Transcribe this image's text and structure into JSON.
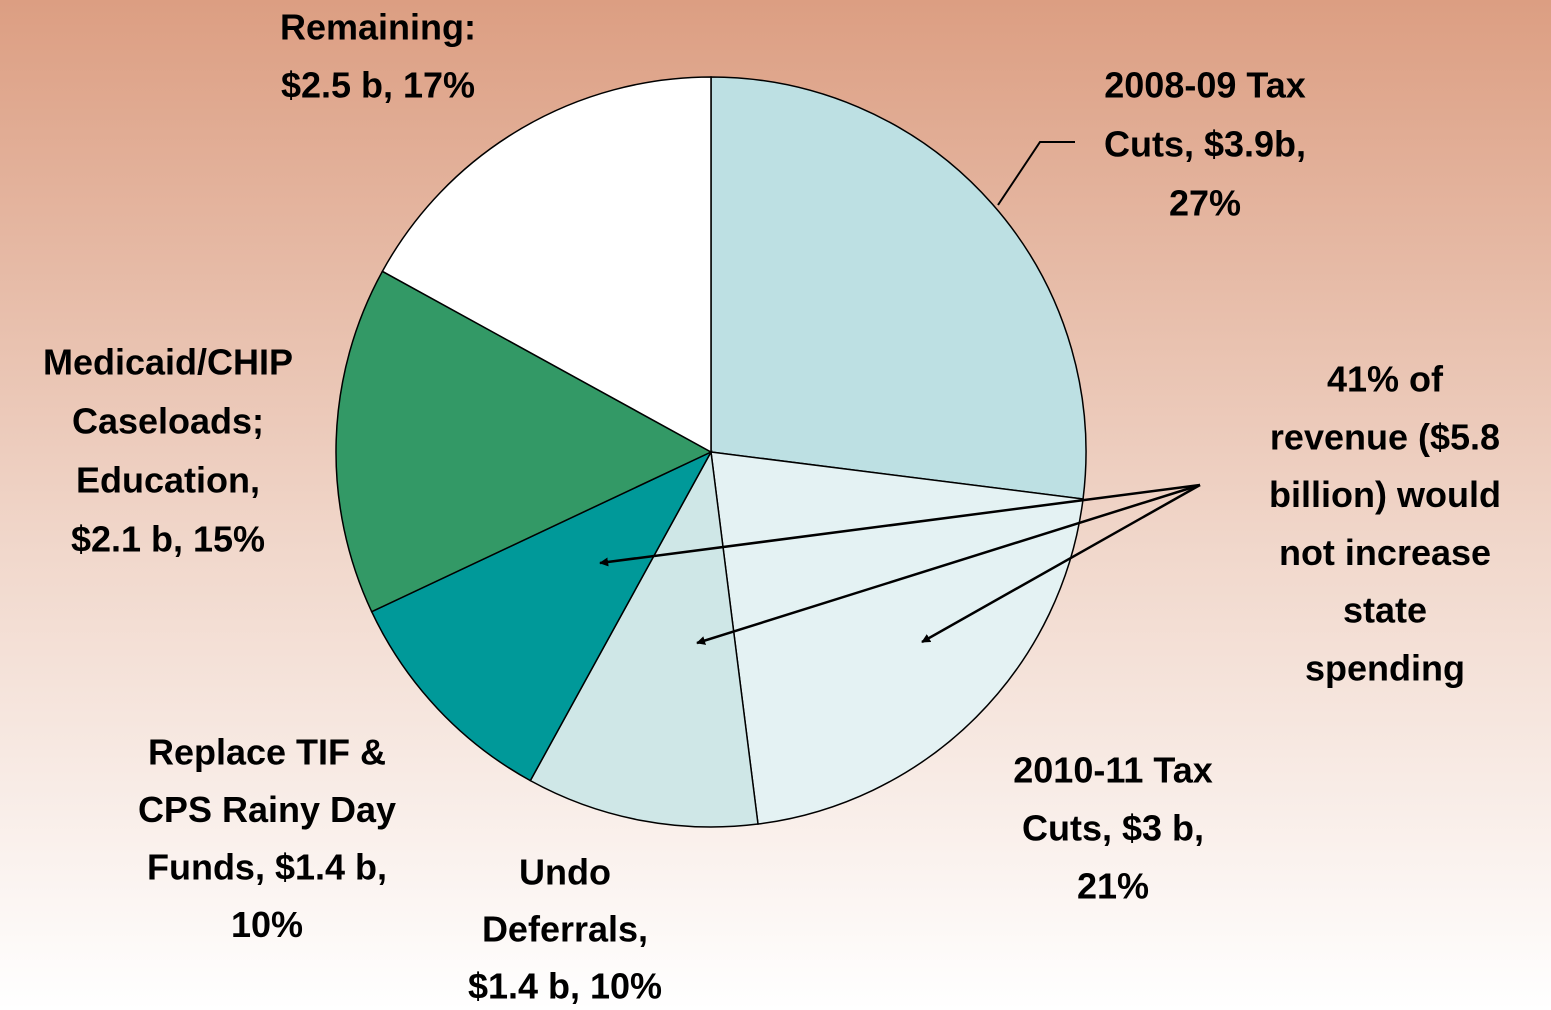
{
  "chart_data": {
    "type": "pie",
    "values": [
      27,
      21,
      10,
      10,
      15,
      17
    ],
    "value_labels": [
      [
        "2008-09 Tax",
        "Cuts, $3.9b,",
        "27%"
      ],
      [
        "2010-11 Tax",
        "Cuts, $3 b,",
        "21%"
      ],
      [
        "Undo",
        "Deferrals,",
        "$1.4 b, 10%"
      ],
      [
        "Replace TIF &",
        "CPS Rainy Day",
        "Funds, $1.4 b,",
        "10%"
      ],
      [
        "Medicaid/CHIP",
        "Caseloads;",
        "Education,",
        "$2.1 b, 15%"
      ],
      [
        "Remaining:",
        "$2.5 b, 17%"
      ]
    ],
    "colors": [
      "#bde0e3",
      "#e4f2f3",
      "#cfe7e7",
      "#009999",
      "#339966",
      "#ffffff"
    ],
    "annotation": [
      "41% of",
      "revenue ($5.8",
      "billion) would",
      "not increase",
      "state",
      "spending"
    ],
    "annotation_color": "#ff0000"
  }
}
